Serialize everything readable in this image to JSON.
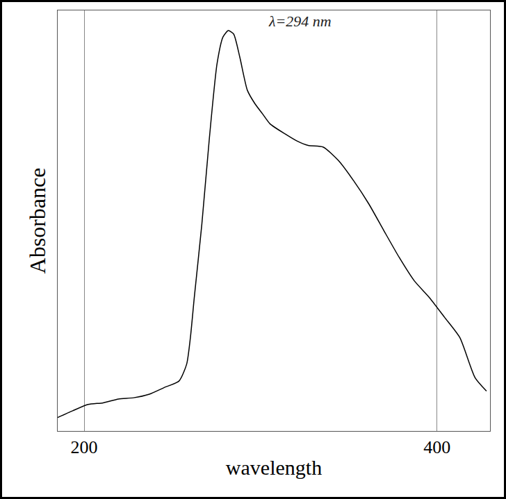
{
  "chart_data": {
    "type": "line",
    "x_label": "wavelength",
    "y_label": "Absorbance",
    "annotations": [
      "λ=294 nm"
    ],
    "x": [
      185.0,
      193.5,
      202.2,
      210.8,
      219.4,
      228.0,
      236.6,
      245.2,
      253.8,
      258.1,
      260.2,
      262.4,
      266.7,
      271.0,
      275.3,
      278.7,
      281.7,
      284.7,
      288.2,
      292.5,
      296.8,
      301.1,
      305.4,
      314.0,
      320.4,
      326.9,
      335.5,
      344.1,
      352.7,
      361.3,
      369.9,
      378.5,
      387.1,
      395.7,
      404.3,
      412.9,
      421.5,
      428.0
    ],
    "values": [
      0.032,
      0.048,
      0.063,
      0.067,
      0.076,
      0.079,
      0.087,
      0.103,
      0.119,
      0.159,
      0.222,
      0.317,
      0.492,
      0.698,
      0.873,
      0.937,
      0.952,
      0.944,
      0.889,
      0.81,
      0.778,
      0.754,
      0.73,
      0.706,
      0.69,
      0.679,
      0.675,
      0.643,
      0.595,
      0.54,
      0.476,
      0.413,
      0.357,
      0.317,
      0.27,
      0.222,
      0.127,
      0.095
    ],
    "xlim": [
      185,
      430
    ],
    "xticks": [
      200,
      400
    ],
    "ylim": [
      0,
      1
    ],
    "yticks": [],
    "tick_labels": "x",
    "grid": true,
    "color": "#000000"
  }
}
